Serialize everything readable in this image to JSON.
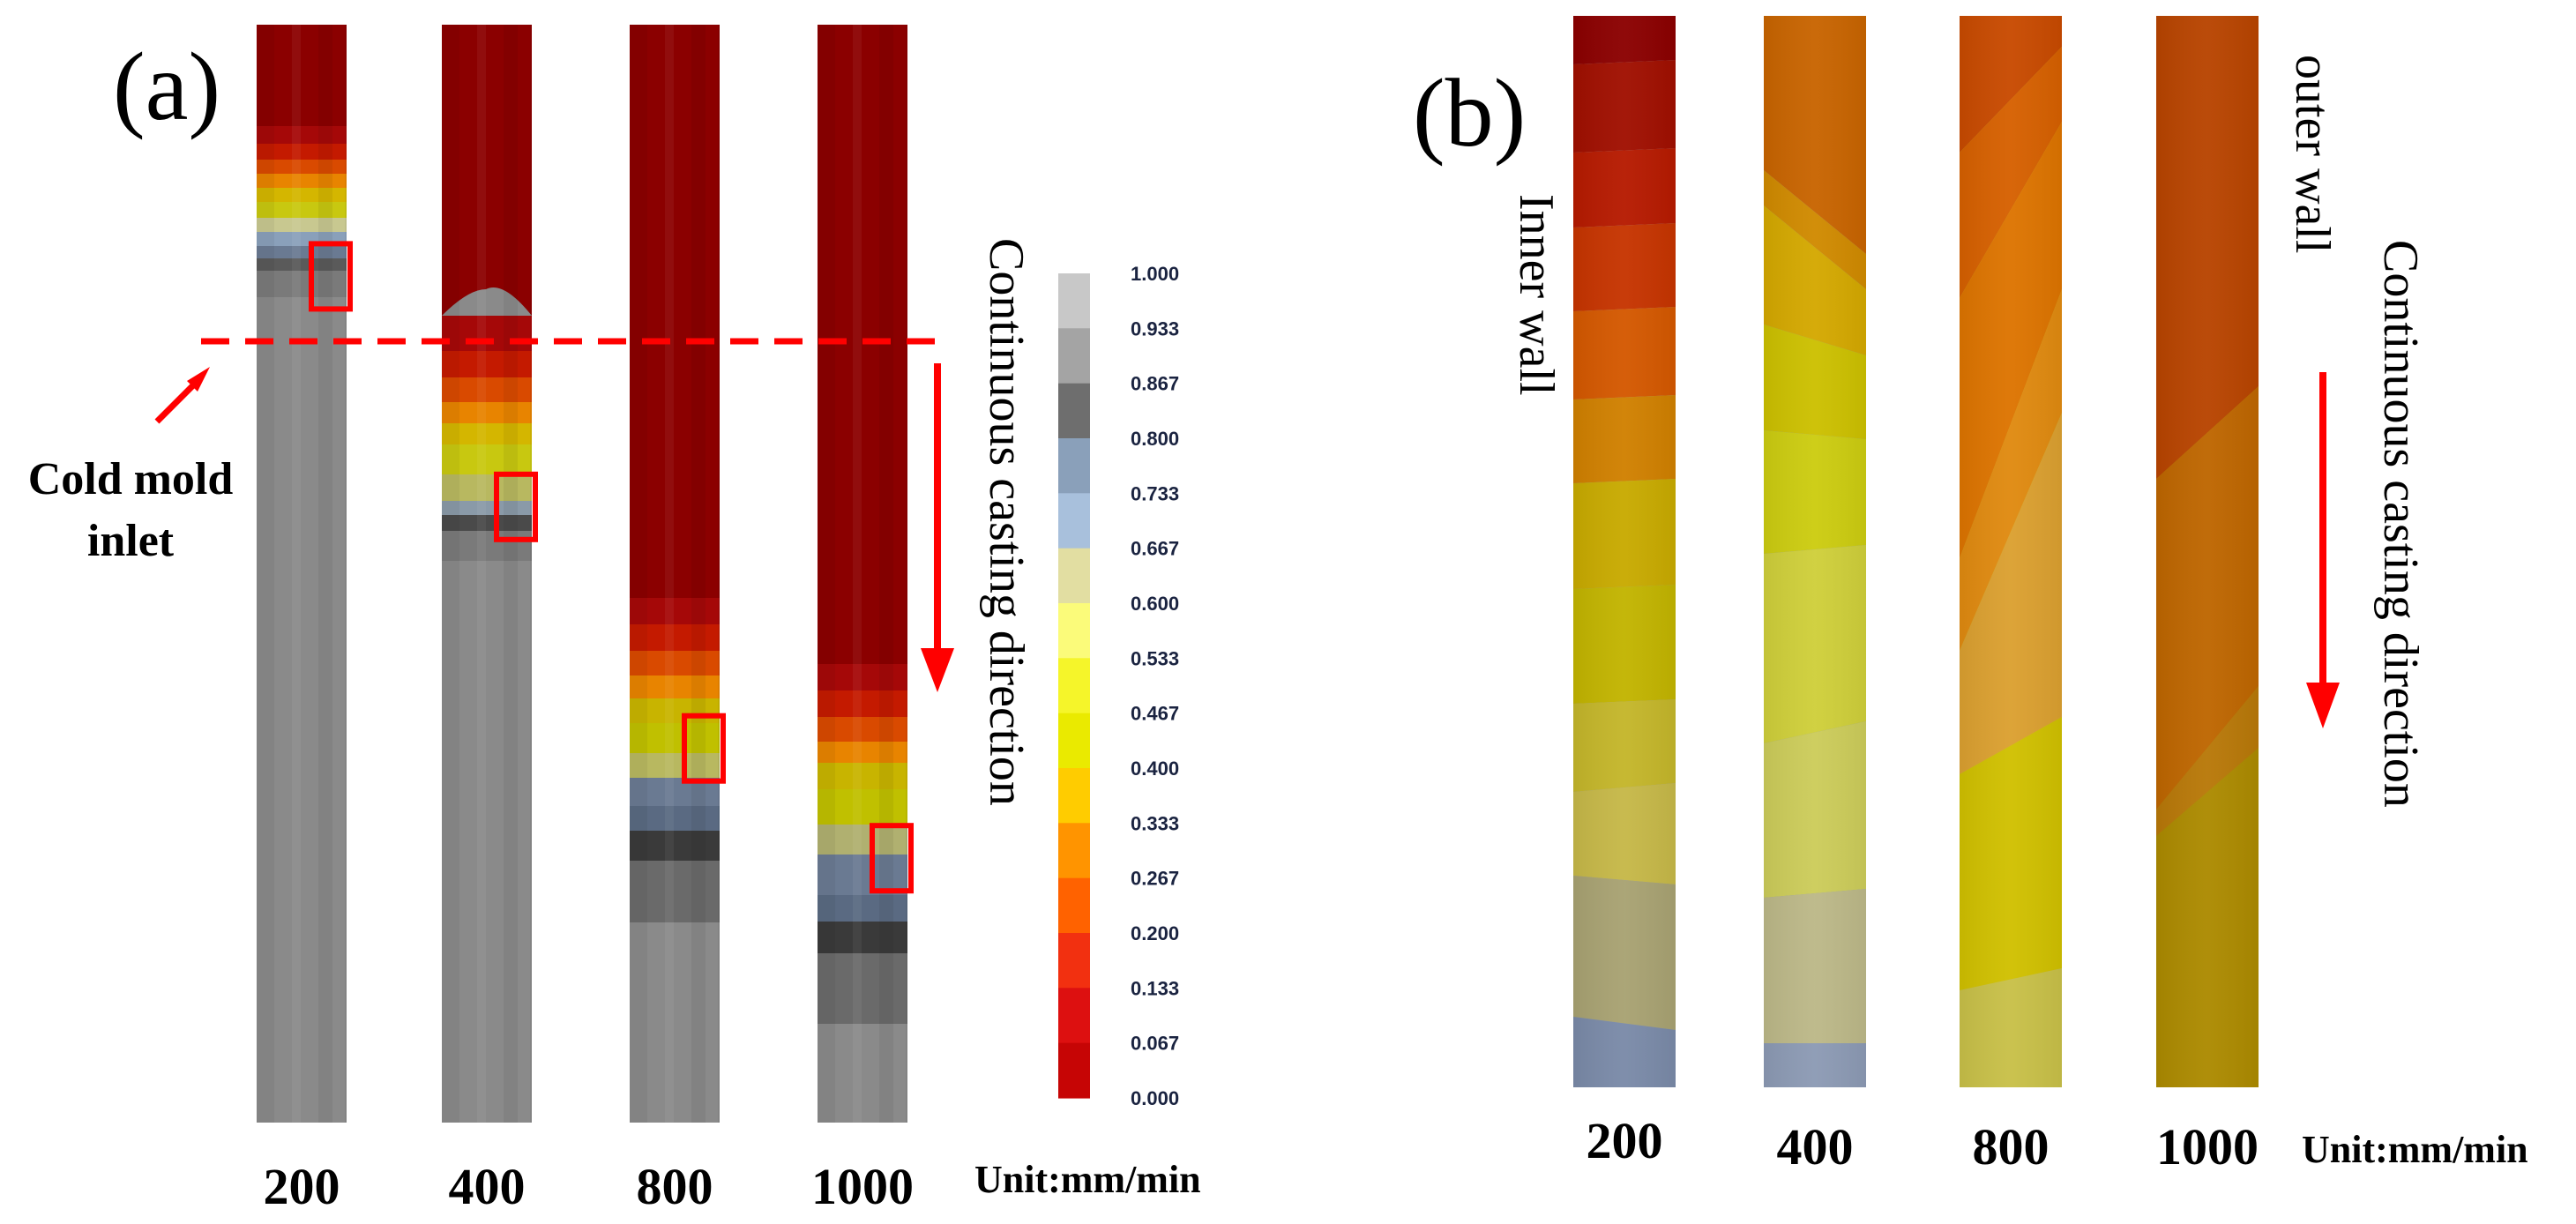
{
  "panel_a": {
    "label": "(a)",
    "inlet_label": [
      "Cold mold",
      "inlet"
    ],
    "direction_label": "Continuous casting direction",
    "unit_label": "Unit:mm/min",
    "speeds": [
      "200",
      "400",
      "800",
      "1000"
    ],
    "solid_fraction_front": [
      0.23,
      0.44,
      0.66,
      0.76
    ],
    "legend": {
      "ticks": [
        "1.000",
        "0.933",
        "0.867",
        "0.800",
        "0.733",
        "0.667",
        "0.600",
        "0.533",
        "0.467",
        "0.400",
        "0.333",
        "0.267",
        "0.200",
        "0.133",
        "0.067",
        "0.000"
      ],
      "colors": [
        "#c8c8c8",
        "#a4a4a4",
        "#6e6e6e",
        "#8aa0ba",
        "#a8c0dc",
        "#e2dea2",
        "#fbfb7a",
        "#f5f52a",
        "#eaea00",
        "#ffcc00",
        "#ff9400",
        "#ff6200",
        "#f23010",
        "#dd1010",
        "#c60505"
      ]
    }
  },
  "panel_b": {
    "label": "(b)",
    "inner_wall_label": "Inner wall",
    "outer_wall_label": "outer wall",
    "direction_label": "Continuous casting direction",
    "unit_label": "Unit:mm/min",
    "speeds": [
      "200",
      "400",
      "800",
      "1000"
    ]
  },
  "colors": {
    "accent_red": "#ff0000",
    "liquid": "#8b0000",
    "solid": "#8a8a8a"
  }
}
